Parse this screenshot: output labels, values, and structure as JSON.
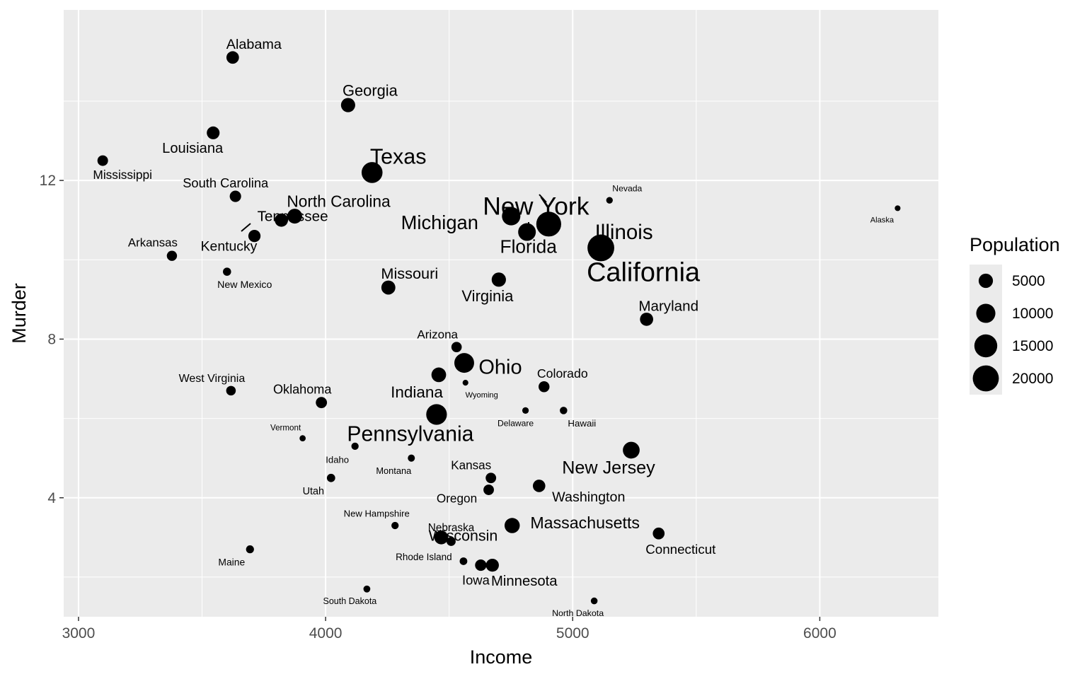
{
  "chart_data": {
    "type": "scatter",
    "title": "",
    "xlabel": "Income",
    "ylabel": "Murder",
    "xlim": [
      2940,
      6480
    ],
    "ylim": [
      1.0,
      16.3
    ],
    "xticks": [
      3000,
      4000,
      5000,
      6000
    ],
    "yticks": [
      4,
      8,
      12
    ],
    "x_minor": [
      3500,
      4500,
      5500,
      6500
    ],
    "y_minor": [
      2,
      6,
      10,
      14
    ],
    "grid": true,
    "size_variable": "Population",
    "legend": {
      "title": "Population",
      "position": "right",
      "entries": [
        {
          "label": "5000",
          "value": 5000
        },
        {
          "label": "10000",
          "value": 10000
        },
        {
          "label": "15000",
          "value": 15000
        },
        {
          "label": "20000",
          "value": 20000
        }
      ]
    },
    "points": [
      {
        "label": "Alabama",
        "income": 3624,
        "murder": 15.1,
        "population": 3615
      },
      {
        "label": "Alaska",
        "income": 6315,
        "murder": 11.3,
        "population": 365
      },
      {
        "label": "Arizona",
        "income": 4530,
        "murder": 7.8,
        "population": 2212
      },
      {
        "label": "Arkansas",
        "income": 3378,
        "murder": 10.1,
        "population": 2110
      },
      {
        "label": "California",
        "income": 5114,
        "murder": 10.3,
        "population": 21198
      },
      {
        "label": "Colorado",
        "income": 4884,
        "murder": 6.8,
        "population": 2541
      },
      {
        "label": "Connecticut",
        "income": 5348,
        "murder": 3.1,
        "population": 3100
      },
      {
        "label": "Delaware",
        "income": 4809,
        "murder": 6.2,
        "population": 579
      },
      {
        "label": "Florida",
        "income": 4815,
        "murder": 10.7,
        "population": 8277
      },
      {
        "label": "Georgia",
        "income": 4091,
        "murder": 13.9,
        "population": 4931
      },
      {
        "label": "Hawaii",
        "income": 4963,
        "murder": 6.2,
        "population": 868
      },
      {
        "label": "Idaho",
        "income": 4119,
        "murder": 5.3,
        "population": 813
      },
      {
        "label": "Illinois",
        "income": 5107,
        "murder": 10.3,
        "population": 11197
      },
      {
        "label": "Indiana",
        "income": 4458,
        "murder": 7.1,
        "population": 5313
      },
      {
        "label": "Iowa",
        "income": 4628,
        "murder": 2.3,
        "population": 2861
      },
      {
        "label": "Kansas",
        "income": 4669,
        "murder": 4.5,
        "population": 2280
      },
      {
        "label": "Kentucky",
        "income": 3712,
        "murder": 10.6,
        "population": 3387
      },
      {
        "label": "Louisiana",
        "income": 3545,
        "murder": 13.2,
        "population": 3806
      },
      {
        "label": "Maine",
        "income": 3694,
        "murder": 2.7,
        "population": 1058
      },
      {
        "label": "Maryland",
        "income": 5299,
        "murder": 8.5,
        "population": 4122
      },
      {
        "label": "Massachusetts",
        "income": 4755,
        "murder": 3.3,
        "population": 5814
      },
      {
        "label": "Michigan",
        "income": 4751,
        "murder": 11.1,
        "population": 9111
      },
      {
        "label": "Minnesota",
        "income": 4675,
        "murder": 2.3,
        "population": 3921
      },
      {
        "label": "Mississippi",
        "income": 3098,
        "murder": 12.5,
        "population": 2341
      },
      {
        "label": "Missouri",
        "income": 4254,
        "murder": 9.3,
        "population": 4767
      },
      {
        "label": "Montana",
        "income": 4347,
        "murder": 5.0,
        "population": 746
      },
      {
        "label": "Nebraska",
        "income": 4508,
        "murder": 2.9,
        "population": 1544
      },
      {
        "label": "Nevada",
        "income": 5149,
        "murder": 11.5,
        "population": 590
      },
      {
        "label": "New Hampshire",
        "income": 4281,
        "murder": 3.3,
        "population": 812
      },
      {
        "label": "New Jersey",
        "income": 5237,
        "murder": 5.2,
        "population": 7333
      },
      {
        "label": "New Mexico",
        "income": 3601,
        "murder": 9.7,
        "population": 1144
      },
      {
        "label": "New York",
        "income": 4903,
        "murder": 10.9,
        "population": 18076
      },
      {
        "label": "North Carolina",
        "income": 3875,
        "murder": 11.1,
        "population": 5441
      },
      {
        "label": "North Dakota",
        "income": 5087,
        "murder": 1.4,
        "population": 637
      },
      {
        "label": "Ohio",
        "income": 4561,
        "murder": 7.4,
        "population": 10735
      },
      {
        "label": "Oklahoma",
        "income": 3983,
        "murder": 6.4,
        "population": 2715
      },
      {
        "label": "Oregon",
        "income": 4660,
        "murder": 4.2,
        "population": 2284
      },
      {
        "label": "Pennsylvania",
        "income": 4449,
        "murder": 6.1,
        "population": 11860
      },
      {
        "label": "Rhode Island",
        "income": 4558,
        "murder": 2.4,
        "population": 931
      },
      {
        "label": "South Carolina",
        "income": 3635,
        "murder": 11.6,
        "population": 2816
      },
      {
        "label": "South Dakota",
        "income": 4167,
        "murder": 1.7,
        "population": 681
      },
      {
        "label": "Tennessee",
        "income": 3821,
        "murder": 11.0,
        "population": 4173
      },
      {
        "label": "Texas",
        "income": 4188,
        "murder": 12.2,
        "population": 12237
      },
      {
        "label": "Utah",
        "income": 4022,
        "murder": 4.5,
        "population": 1203
      },
      {
        "label": "Vermont",
        "income": 3907,
        "murder": 5.5,
        "population": 472
      },
      {
        "label": "Virginia",
        "income": 4701,
        "murder": 9.5,
        "population": 4981
      },
      {
        "label": "Washington",
        "income": 4864,
        "murder": 4.3,
        "population": 3559
      },
      {
        "label": "West Virginia",
        "income": 3617,
        "murder": 6.7,
        "population": 1799
      },
      {
        "label": "Wisconsin",
        "income": 4468,
        "murder": 3.0,
        "population": 4589
      },
      {
        "label": "Wyoming",
        "income": 4566,
        "murder": 6.9,
        "population": 376
      }
    ]
  }
}
